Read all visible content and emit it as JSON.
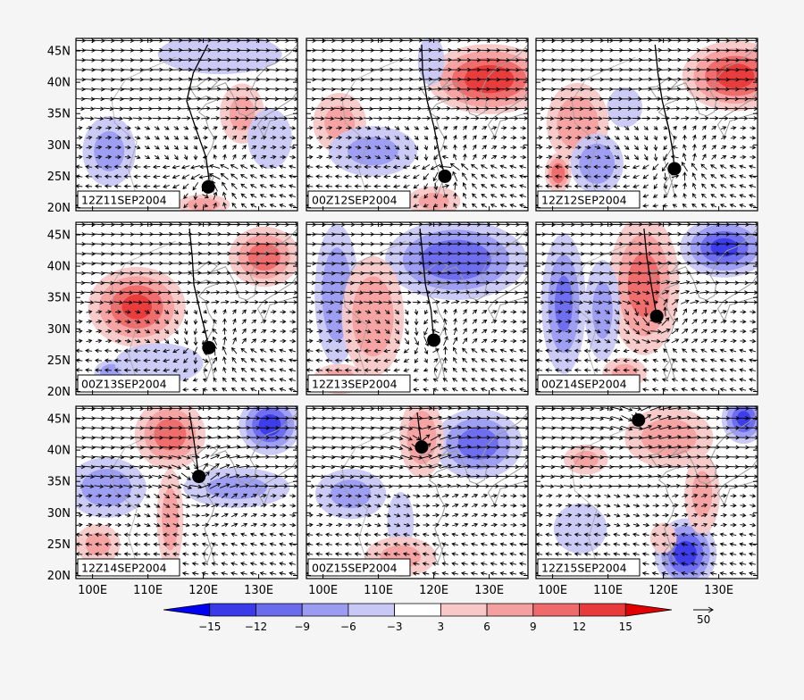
{
  "chart_data": {
    "type": "vector_anomaly_panels",
    "panels": [
      {
        "label": "12Z11SEP2004",
        "center": {
          "lon": 120.9,
          "lat": 23.3
        },
        "track": [
          [
            120.8,
            46.0
          ],
          [
            118.2,
            41.5
          ],
          [
            117.0,
            37.0
          ],
          [
            118.5,
            33.0
          ],
          [
            120.5,
            28.0
          ],
          [
            121.2,
            23.3
          ]
        ],
        "anomalies": [
          {
            "lon": 103,
            "lat": 29,
            "rx": 3,
            "ry": 3.5,
            "v": -6
          },
          {
            "lon": 127,
            "lat": 35,
            "rx": 2.5,
            "ry": 3,
            "v": 6
          },
          {
            "lon": 132,
            "lat": 31,
            "rx": 2.5,
            "ry": 3,
            "v": -5
          },
          {
            "lon": 123,
            "lat": 44.5,
            "rx": 7,
            "ry": 2,
            "v": -5
          },
          {
            "lon": 120,
            "lat": 20.5,
            "rx": 3,
            "ry": 1,
            "v": 7
          }
        ]
      },
      {
        "label": "00Z12SEP2004",
        "center": {
          "lon": 122.0,
          "lat": 25.0
        },
        "track": [
          [
            117.8,
            46.0
          ],
          [
            118.0,
            41.5
          ],
          [
            118.8,
            37.0
          ],
          [
            120.0,
            33.0
          ],
          [
            121.0,
            28.5
          ],
          [
            122.0,
            25.0
          ]
        ],
        "anomalies": [
          {
            "lon": 130,
            "lat": 40.5,
            "rx": 7,
            "ry": 3.5,
            "v": 14
          },
          {
            "lon": 103,
            "lat": 33.5,
            "rx": 3,
            "ry": 3,
            "v": 6
          },
          {
            "lon": 109,
            "lat": 29,
            "rx": 5,
            "ry": 2.5,
            "v": -6
          },
          {
            "lon": 120,
            "lat": 21,
            "rx": 3,
            "ry": 1.5,
            "v": 6
          },
          {
            "lon": 119.5,
            "lat": 43.5,
            "rx": 1.5,
            "ry": 2.5,
            "v": -5
          }
        ]
      },
      {
        "label": "12Z12SEP2004",
        "center": {
          "lon": 122.0,
          "lat": 26.2
        },
        "track": [
          [
            118.5,
            46.0
          ],
          [
            119.0,
            41.5
          ],
          [
            119.8,
            37.0
          ],
          [
            121.0,
            32.5
          ],
          [
            121.7,
            29.0
          ],
          [
            122.0,
            26.2
          ]
        ],
        "anomalies": [
          {
            "lon": 133,
            "lat": 41,
            "rx": 6,
            "ry": 3.5,
            "v": 13
          },
          {
            "lon": 104.5,
            "lat": 33.5,
            "rx": 3.5,
            "ry": 4,
            "v": 8
          },
          {
            "lon": 108,
            "lat": 27,
            "rx": 3,
            "ry": 3,
            "v": -8
          },
          {
            "lon": 101,
            "lat": 25.5,
            "rx": 1.5,
            "ry": 2,
            "v": 11
          },
          {
            "lon": 113,
            "lat": 36,
            "rx": 2,
            "ry": 2,
            "v": -5
          }
        ]
      },
      {
        "label": "00Z13SEP2004",
        "center": {
          "lon": 121.0,
          "lat": 27.0
        },
        "track": [
          [
            117.5,
            46.0
          ],
          [
            118.0,
            41.5
          ],
          [
            118.3,
            37.0
          ],
          [
            119.5,
            32.5
          ],
          [
            120.5,
            29.0
          ],
          [
            121.0,
            27.0
          ]
        ],
        "anomalies": [
          {
            "lon": 108,
            "lat": 33.5,
            "rx": 5.5,
            "ry": 4,
            "v": 12
          },
          {
            "lon": 131,
            "lat": 41.5,
            "rx": 4,
            "ry": 3,
            "v": 10
          },
          {
            "lon": 103.5,
            "lat": 23,
            "rx": 2,
            "ry": 1.3,
            "v": -8
          },
          {
            "lon": 112,
            "lat": 24.5,
            "rx": 5,
            "ry": 2,
            "v": -5
          }
        ]
      },
      {
        "label": "12Z13SEP2004",
        "center": {
          "lon": 120.0,
          "lat": 28.2
        },
        "track": [
          [
            117.5,
            46.0
          ],
          [
            118.0,
            41.5
          ],
          [
            118.5,
            37.0
          ],
          [
            119.5,
            33.0
          ],
          [
            120.0,
            28.2
          ]
        ],
        "anomalies": [
          {
            "lon": 124,
            "lat": 41,
            "rx": 8,
            "ry": 4,
            "v": -11
          },
          {
            "lon": 102.5,
            "lat": 35.5,
            "rx": 2.5,
            "ry": 7,
            "v": -8
          },
          {
            "lon": 109,
            "lat": 32,
            "rx": 3.5,
            "ry": 6,
            "v": 8
          },
          {
            "lon": 103,
            "lat": 22,
            "rx": 3,
            "ry": 1.5,
            "v": 7
          }
        ]
      },
      {
        "label": "00Z14SEP2004",
        "center": {
          "lon": 118.8,
          "lat": 32.0
        },
        "track": [
          [
            116.5,
            46.0
          ],
          [
            117.0,
            41.5
          ],
          [
            117.8,
            37.0
          ],
          [
            118.8,
            32.0
          ]
        ],
        "anomalies": [
          {
            "lon": 116.5,
            "lat": 37,
            "rx": 4,
            "ry": 7,
            "v": 10
          },
          {
            "lon": 102,
            "lat": 34,
            "rx": 2.5,
            "ry": 7,
            "v": -9
          },
          {
            "lon": 131,
            "lat": 43,
            "rx": 5,
            "ry": 3,
            "v": -12
          },
          {
            "lon": 109,
            "lat": 33,
            "rx": 2,
            "ry": 5,
            "v": -6
          },
          {
            "lon": 113,
            "lat": 23,
            "rx": 2.5,
            "ry": 1.5,
            "v": 6
          }
        ]
      },
      {
        "label": "12Z14SEP2004",
        "center": {
          "lon": 119.2,
          "lat": 35.8
        },
        "track": [
          [
            117.5,
            46.0
          ],
          [
            118.3,
            41.5
          ],
          [
            119.2,
            35.8
          ]
        ],
        "anomalies": [
          {
            "lon": 132,
            "lat": 44,
            "rx": 3.5,
            "ry": 3,
            "v": -13
          },
          {
            "lon": 102.5,
            "lat": 34,
            "rx": 4.5,
            "ry": 3,
            "v": -7
          },
          {
            "lon": 114,
            "lat": 42.5,
            "rx": 4,
            "ry": 3.5,
            "v": 10
          },
          {
            "lon": 126,
            "lat": 34,
            "rx": 6,
            "ry": 2,
            "v": -6
          },
          {
            "lon": 114,
            "lat": 29,
            "rx": 1.5,
            "ry": 5,
            "v": 7
          },
          {
            "lon": 101,
            "lat": 25,
            "rx": 2.5,
            "ry": 2,
            "v": 6
          }
        ]
      },
      {
        "label": "00Z15SEP2004",
        "center": {
          "lon": 117.8,
          "lat": 40.5
        },
        "track": [
          [
            117.0,
            46.0
          ],
          [
            117.8,
            40.5
          ]
        ],
        "anomalies": [
          {
            "lon": 128,
            "lat": 41,
            "rx": 5,
            "ry": 3.5,
            "v": -10
          },
          {
            "lon": 117.8,
            "lat": 42,
            "rx": 2.5,
            "ry": 4,
            "v": 8
          },
          {
            "lon": 105,
            "lat": 33,
            "rx": 4,
            "ry": 2.5,
            "v": -6
          },
          {
            "lon": 114,
            "lat": 28.5,
            "rx": 1.5,
            "ry": 3,
            "v": -5
          },
          {
            "lon": 114,
            "lat": 23,
            "rx": 4,
            "ry": 2,
            "v": 6
          }
        ]
      },
      {
        "label": "12Z15SEP2004",
        "center": {
          "lon": 115.5,
          "lat": 44.8
        },
        "track": [
          [
            115.0,
            46.0
          ],
          [
            115.5,
            44.8
          ]
        ],
        "anomalies": [
          {
            "lon": 124,
            "lat": 23.5,
            "rx": 3.5,
            "ry": 3.5,
            "v": -13
          },
          {
            "lon": 134.5,
            "lat": 45,
            "rx": 2.5,
            "ry": 2.5,
            "v": -12
          },
          {
            "lon": 121,
            "lat": 42,
            "rx": 5,
            "ry": 3,
            "v": 7
          },
          {
            "lon": 127,
            "lat": 33,
            "rx": 2,
            "ry": 4,
            "v": 6
          },
          {
            "lon": 105,
            "lat": 27.5,
            "rx": 3,
            "ry": 2.5,
            "v": -5
          },
          {
            "lon": 106,
            "lat": 38.5,
            "rx": 2.5,
            "ry": 1.5,
            "v": 6
          },
          {
            "lon": 120,
            "lat": 26,
            "rx": 1.5,
            "ry": 1.5,
            "v": 5
          }
        ]
      }
    ],
    "axes": {
      "lon_range": [
        97,
        137
      ],
      "lat_range": [
        19.5,
        47
      ],
      "y_ticks": [
        "45N",
        "40N",
        "35N",
        "30N",
        "25N",
        "20N"
      ],
      "x_ticks": [
        "100E",
        "110E",
        "120E",
        "130E"
      ]
    },
    "colorbar": {
      "levels": [
        -15,
        -12,
        -9,
        -6,
        -3,
        3,
        6,
        9,
        12,
        15
      ],
      "labels": [
        "−15",
        "−12",
        "−9",
        "−6",
        "−3",
        "3",
        "6",
        "9",
        "12",
        "15"
      ],
      "colors": [
        "#0000f0",
        "#3a3ae8",
        "#6b6bee",
        "#9b9bf2",
        "#c8c8f6",
        "#ffffff",
        "#f8c8c8",
        "#f4a0a0",
        "#ef6a6a",
        "#e83a3a",
        "#e00000"
      ]
    },
    "reference_vector": {
      "label": "50"
    },
    "wind_direction": "westerly north, easterly/cyclonic south"
  }
}
